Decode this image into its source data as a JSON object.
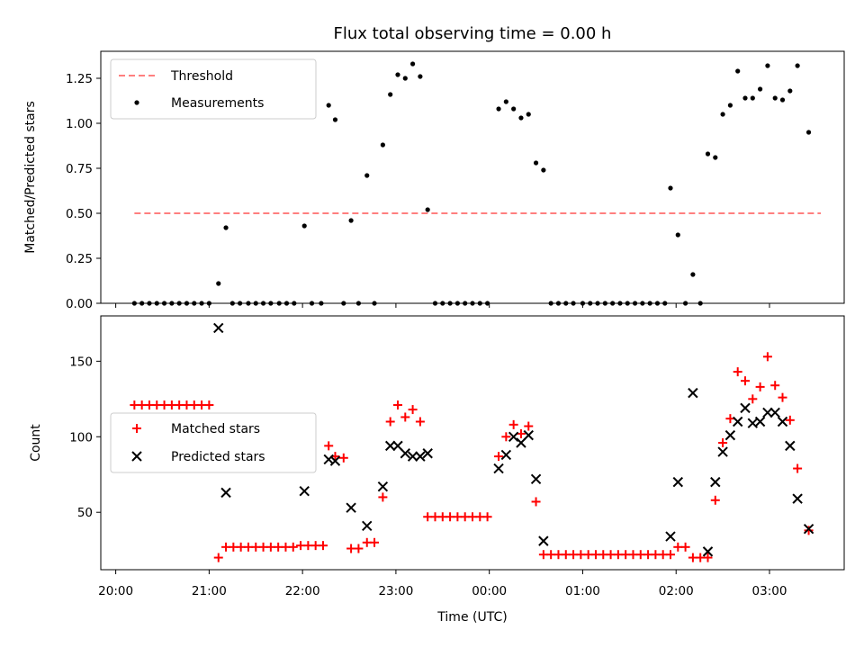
{
  "chart_data": [
    {
      "type": "scatter",
      "title": "Flux total observing time = 0.00 h",
      "xlabel": "",
      "ylabel": "Matched/Predicted stars",
      "x_unit": "hours since 20:00 UTC",
      "xlim": [
        -0.16,
        7.8
      ],
      "ylim": [
        0,
        1.4
      ],
      "yticks": [
        "0.00",
        "0.25",
        "0.50",
        "0.75",
        "1.00",
        "1.25"
      ],
      "legend": {
        "position": "top-left",
        "entries": [
          "Threshold",
          "Measurements"
        ]
      },
      "threshold": {
        "name": "Threshold",
        "y": 0.5,
        "x_range": [
          0.2,
          7.55
        ],
        "color": "#ff7f7f"
      },
      "series": [
        {
          "name": "Measurements",
          "color": "#000000",
          "points": [
            [
              0.2,
              0
            ],
            [
              0.28,
              0
            ],
            [
              0.36,
              0
            ],
            [
              0.44,
              0
            ],
            [
              0.52,
              0
            ],
            [
              0.6,
              0
            ],
            [
              0.68,
              0
            ],
            [
              0.76,
              0
            ],
            [
              0.84,
              0
            ],
            [
              0.92,
              0
            ],
            [
              1.0,
              0
            ],
            [
              1.1,
              0.11
            ],
            [
              1.18,
              0.42
            ],
            [
              1.25,
              0
            ],
            [
              1.33,
              0
            ],
            [
              1.42,
              0
            ],
            [
              1.5,
              0
            ],
            [
              1.58,
              0
            ],
            [
              1.66,
              0
            ],
            [
              1.75,
              0
            ],
            [
              1.83,
              0
            ],
            [
              1.91,
              0
            ],
            [
              2.02,
              0.43
            ],
            [
              2.1,
              0
            ],
            [
              2.2,
              0
            ],
            [
              2.28,
              1.1
            ],
            [
              2.35,
              1.02
            ],
            [
              2.44,
              0
            ],
            [
              2.52,
              0.46
            ],
            [
              2.6,
              0
            ],
            [
              2.69,
              0.71
            ],
            [
              2.77,
              0
            ],
            [
              2.86,
              0.88
            ],
            [
              2.94,
              1.16
            ],
            [
              3.02,
              1.27
            ],
            [
              3.1,
              1.25
            ],
            [
              3.18,
              1.33
            ],
            [
              3.26,
              1.26
            ],
            [
              3.34,
              0.52
            ],
            [
              3.42,
              0
            ],
            [
              3.5,
              0
            ],
            [
              3.58,
              0
            ],
            [
              3.66,
              0
            ],
            [
              3.74,
              0
            ],
            [
              3.82,
              0
            ],
            [
              3.9,
              0
            ],
            [
              3.98,
              0
            ],
            [
              4.1,
              1.08
            ],
            [
              4.18,
              1.12
            ],
            [
              4.26,
              1.08
            ],
            [
              4.34,
              1.03
            ],
            [
              4.42,
              1.05
            ],
            [
              4.5,
              0.78
            ],
            [
              4.58,
              0.74
            ],
            [
              4.66,
              0
            ],
            [
              4.74,
              0
            ],
            [
              4.82,
              0
            ],
            [
              4.9,
              0
            ],
            [
              5.0,
              0
            ],
            [
              5.08,
              0
            ],
            [
              5.16,
              0
            ],
            [
              5.24,
              0
            ],
            [
              5.32,
              0
            ],
            [
              5.4,
              0
            ],
            [
              5.48,
              0
            ],
            [
              5.56,
              0
            ],
            [
              5.64,
              0
            ],
            [
              5.72,
              0
            ],
            [
              5.8,
              0
            ],
            [
              5.88,
              0
            ],
            [
              5.94,
              0.64
            ],
            [
              6.02,
              0.38
            ],
            [
              6.1,
              0
            ],
            [
              6.18,
              0.16
            ],
            [
              6.26,
              0
            ],
            [
              6.34,
              0.83
            ],
            [
              6.42,
              0.81
            ],
            [
              6.5,
              1.05
            ],
            [
              6.58,
              1.1
            ],
            [
              6.66,
              1.29
            ],
            [
              6.74,
              1.14
            ],
            [
              6.82,
              1.14
            ],
            [
              6.9,
              1.19
            ],
            [
              6.98,
              1.32
            ],
            [
              7.06,
              1.14
            ],
            [
              7.14,
              1.13
            ],
            [
              7.22,
              1.18
            ],
            [
              7.3,
              1.32
            ],
            [
              7.42,
              0.95
            ]
          ]
        }
      ]
    },
    {
      "type": "scatter",
      "title": "",
      "xlabel": "Time (UTC)",
      "ylabel": "Count",
      "x_unit": "hours since 20:00 UTC",
      "xlim": [
        -0.16,
        7.8
      ],
      "ylim": [
        12,
        180
      ],
      "yticks": [
        "50",
        "100",
        "150"
      ],
      "xticks": [
        "20:00",
        "21:00",
        "22:00",
        "23:00",
        "00:00",
        "01:00",
        "02:00",
        "03:00"
      ],
      "legend": {
        "position": "center-left",
        "entries": [
          "Matched stars",
          "Predicted stars"
        ]
      },
      "series": [
        {
          "name": "Matched stars",
          "marker": "plus",
          "color": "#ff0000",
          "points": [
            [
              0.2,
              121
            ],
            [
              0.28,
              121
            ],
            [
              0.36,
              121
            ],
            [
              0.44,
              121
            ],
            [
              0.52,
              121
            ],
            [
              0.6,
              121
            ],
            [
              0.68,
              121
            ],
            [
              0.76,
              121
            ],
            [
              0.84,
              121
            ],
            [
              0.92,
              121
            ],
            [
              1.0,
              121
            ],
            [
              1.1,
              20
            ],
            [
              1.18,
              27
            ],
            [
              1.26,
              27
            ],
            [
              1.34,
              27
            ],
            [
              1.42,
              27
            ],
            [
              1.5,
              27
            ],
            [
              1.58,
              27
            ],
            [
              1.66,
              27
            ],
            [
              1.74,
              27
            ],
            [
              1.82,
              27
            ],
            [
              1.9,
              27
            ],
            [
              1.98,
              28
            ],
            [
              2.06,
              28
            ],
            [
              2.14,
              28
            ],
            [
              2.22,
              28
            ],
            [
              2.28,
              94
            ],
            [
              2.35,
              87
            ],
            [
              2.44,
              86
            ],
            [
              2.52,
              26
            ],
            [
              2.6,
              26
            ],
            [
              2.69,
              30
            ],
            [
              2.77,
              30
            ],
            [
              2.86,
              60
            ],
            [
              2.94,
              110
            ],
            [
              3.02,
              121
            ],
            [
              3.1,
              113
            ],
            [
              3.18,
              118
            ],
            [
              3.26,
              110
            ],
            [
              3.34,
              47
            ],
            [
              3.42,
              47
            ],
            [
              3.5,
              47
            ],
            [
              3.58,
              47
            ],
            [
              3.66,
              47
            ],
            [
              3.74,
              47
            ],
            [
              3.82,
              47
            ],
            [
              3.9,
              47
            ],
            [
              3.98,
              47
            ],
            [
              4.1,
              87
            ],
            [
              4.18,
              100
            ],
            [
              4.26,
              108
            ],
            [
              4.34,
              102
            ],
            [
              4.42,
              107
            ],
            [
              4.5,
              57
            ],
            [
              4.58,
              22
            ],
            [
              4.66,
              22
            ],
            [
              4.74,
              22
            ],
            [
              4.82,
              22
            ],
            [
              4.9,
              22
            ],
            [
              4.98,
              22
            ],
            [
              5.06,
              22
            ],
            [
              5.14,
              22
            ],
            [
              5.22,
              22
            ],
            [
              5.3,
              22
            ],
            [
              5.38,
              22
            ],
            [
              5.46,
              22
            ],
            [
              5.54,
              22
            ],
            [
              5.62,
              22
            ],
            [
              5.7,
              22
            ],
            [
              5.78,
              22
            ],
            [
              5.86,
              22
            ],
            [
              5.94,
              22
            ],
            [
              6.02,
              27
            ],
            [
              6.1,
              27
            ],
            [
              6.18,
              20
            ],
            [
              6.26,
              20
            ],
            [
              6.34,
              20
            ],
            [
              6.42,
              58
            ],
            [
              6.5,
              96
            ],
            [
              6.58,
              112
            ],
            [
              6.66,
              143
            ],
            [
              6.74,
              137
            ],
            [
              6.82,
              125
            ],
            [
              6.9,
              133
            ],
            [
              6.98,
              153
            ],
            [
              7.06,
              134
            ],
            [
              7.14,
              126
            ],
            [
              7.22,
              111
            ],
            [
              7.3,
              79
            ],
            [
              7.42,
              38
            ]
          ]
        },
        {
          "name": "Predicted stars",
          "marker": "x",
          "color": "#000000",
          "points": [
            [
              1.1,
              172
            ],
            [
              1.18,
              63
            ],
            [
              2.02,
              64
            ],
            [
              2.28,
              85
            ],
            [
              2.35,
              84
            ],
            [
              2.52,
              53
            ],
            [
              2.69,
              41
            ],
            [
              2.86,
              67
            ],
            [
              2.94,
              94
            ],
            [
              3.02,
              94
            ],
            [
              3.1,
              89
            ],
            [
              3.18,
              87
            ],
            [
              3.26,
              87
            ],
            [
              3.34,
              89
            ],
            [
              4.1,
              79
            ],
            [
              4.18,
              88
            ],
            [
              4.26,
              100
            ],
            [
              4.34,
              96
            ],
            [
              4.42,
              101
            ],
            [
              4.5,
              72
            ],
            [
              4.58,
              31
            ],
            [
              5.94,
              34
            ],
            [
              6.02,
              70
            ],
            [
              6.18,
              129
            ],
            [
              6.34,
              24
            ],
            [
              6.42,
              70
            ],
            [
              6.5,
              90
            ],
            [
              6.58,
              101
            ],
            [
              6.66,
              110
            ],
            [
              6.74,
              119
            ],
            [
              6.82,
              109
            ],
            [
              6.9,
              110
            ],
            [
              6.98,
              116
            ],
            [
              7.06,
              116
            ],
            [
              7.14,
              110
            ],
            [
              7.22,
              94
            ],
            [
              7.3,
              59
            ],
            [
              7.42,
              39
            ]
          ]
        }
      ]
    }
  ]
}
